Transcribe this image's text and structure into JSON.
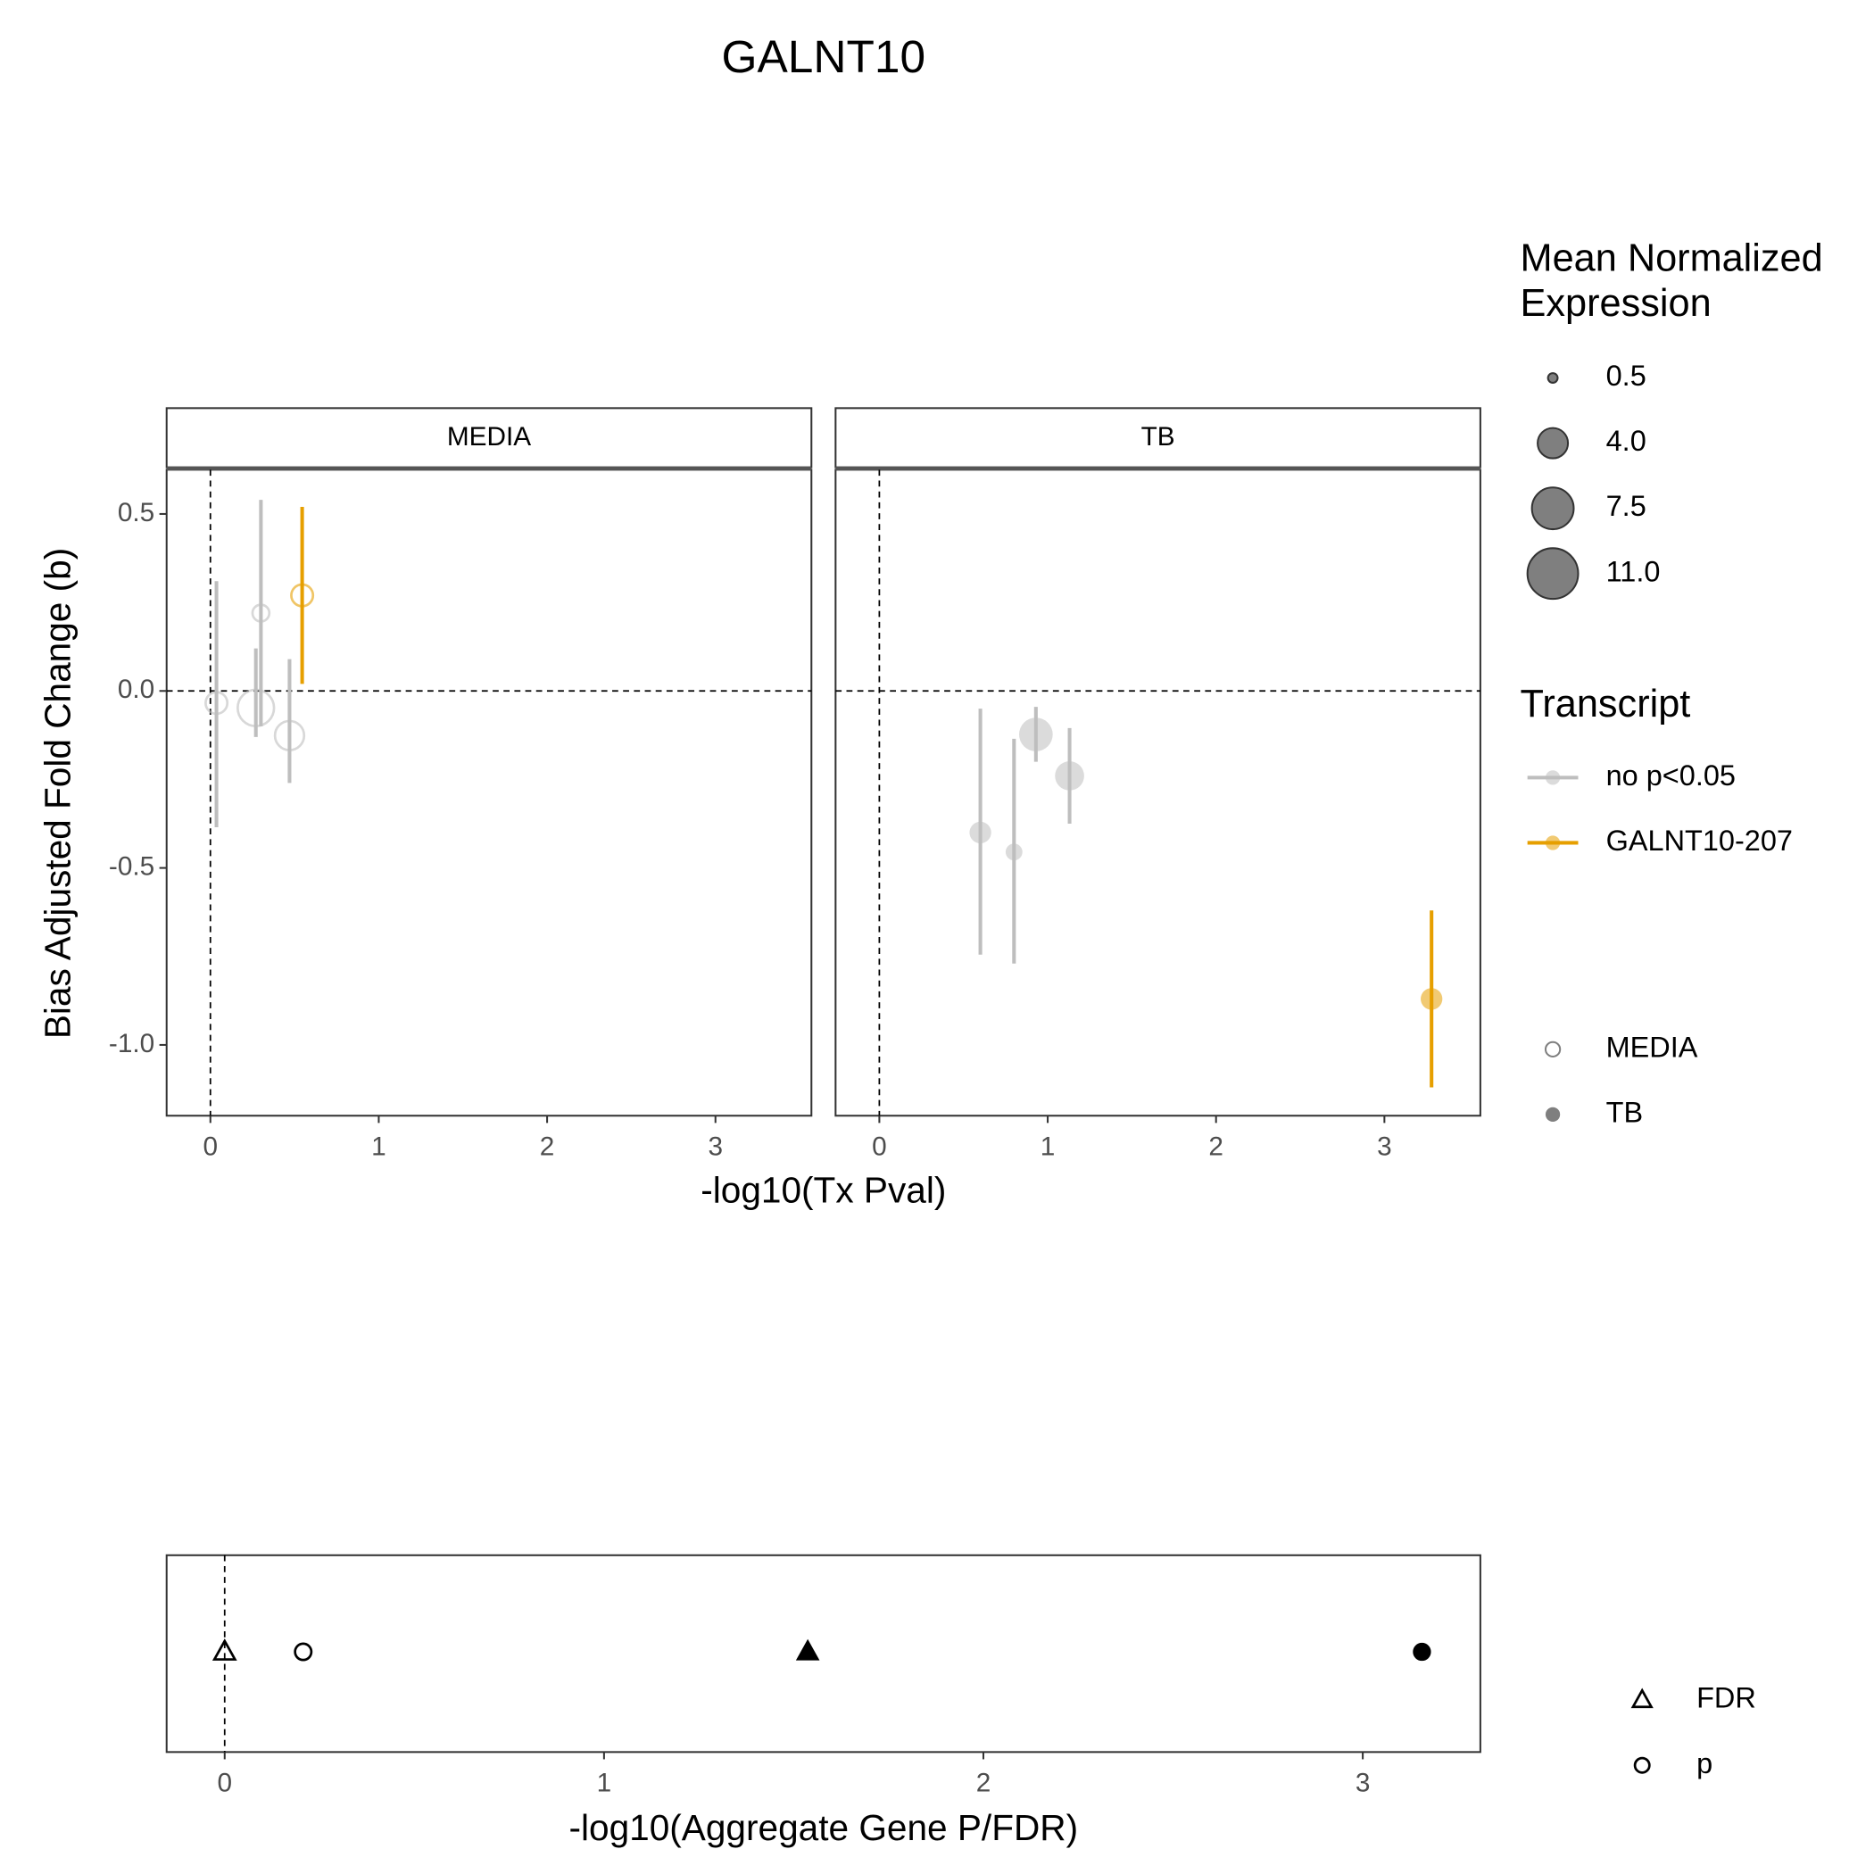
{
  "chart_data": [
    {
      "type": "scatter",
      "title": "GALNT10",
      "x_label": "-log10(Tx Pval)",
      "y_label": "Bias Adjusted Fold Change (b)",
      "xlim": [
        -0.26,
        3.57
      ],
      "xticks": [
        0,
        1,
        2,
        3
      ],
      "ylim": [
        -1.2,
        0.625
      ],
      "yticks": [
        0.5,
        {
          "value": 0,
          "label": "0.0"
        },
        -0.5,
        {
          "value": -1,
          "label": "-1.0"
        }
      ],
      "vline": 0,
      "hline": 0,
      "panels": [
        {
          "name": "MEDIA",
          "filled": false,
          "series": [
            {
              "name": "no p<0.05",
              "color": "#bebebe",
              "x": [
                0.036,
                0.3,
                0.27,
                0.47
              ],
              "values": [
                -0.034,
                0.22,
                -0.048,
                -0.126
              ],
              "lower": [
                -0.385,
                -0.1,
                -0.13,
                -0.26
              ],
              "upper": [
                0.31,
                0.54,
                0.12,
                0.09
              ],
              "sizes": [
                2.1,
                1.3,
                5.7,
                3.7
              ]
            },
            {
              "name": "GALNT10-207",
              "color": "#e69f00",
              "x": [
                0.545
              ],
              "values": [
                0.27
              ],
              "lower": [
                0.02
              ],
              "upper": [
                0.52
              ],
              "sizes": [
                2.1
              ]
            }
          ]
        },
        {
          "name": "TB",
          "filled": true,
          "series": [
            {
              "name": "no p<0.05",
              "color": "#bebebe",
              "x": [
                0.6,
                0.8,
                0.93,
                1.13
              ],
              "values": [
                -0.4,
                -0.455,
                -0.123,
                -0.24
              ],
              "lower": [
                -0.745,
                -0.77,
                -0.2,
                -0.375
              ],
              "upper": [
                -0.05,
                -0.135,
                -0.045,
                -0.105
              ],
              "sizes": [
                2.1,
                1.3,
                4.9,
                3.7
              ]
            },
            {
              "name": "GALNT10-207",
              "color": "#e69f00",
              "x": [
                3.28
              ],
              "values": [
                -0.87
              ],
              "lower": [
                -1.12
              ],
              "upper": [
                -0.62
              ],
              "sizes": [
                2.1
              ]
            }
          ]
        }
      ],
      "size_legend_title": [
        "Mean Normalized",
        "Expression"
      ],
      "size_legend": [
        0.5,
        {
          "value": 4,
          "label": "4.0"
        },
        7.5,
        {
          "value": 11,
          "label": "11.0"
        }
      ],
      "color_legend_title": "Transcript"
    },
    {
      "type": "dot",
      "x_label": "-log10(Aggregate Gene P/FDR)",
      "xlim": [
        -0.153,
        3.31
      ],
      "xticks": [
        0,
        1,
        2,
        3
      ],
      "vline": 0,
      "filled": [
        false,
        true
      ],
      "series": [
        {
          "name": "FDR",
          "shape": "triangle",
          "x": [
            0.0,
            1.537
          ]
        },
        {
          "name": "p",
          "shape": "circle",
          "x": [
            0.207,
            3.156
          ]
        }
      ]
    }
  ]
}
